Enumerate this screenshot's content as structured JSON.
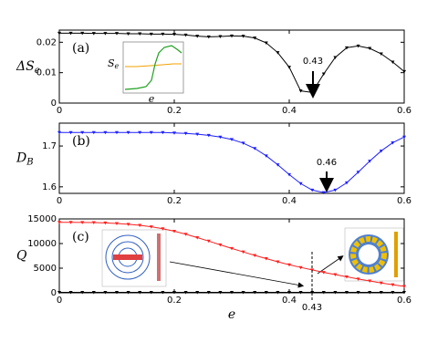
{
  "chart_data": [
    {
      "type": "line",
      "panel_label": "(a)",
      "ylabel": "ΔS",
      "ylabel_sub": "e",
      "annotation": "0.43",
      "inset_ylabel": "S",
      "inset_ylabel_sub": "e",
      "inset_xlabel": "e",
      "x": [
        0,
        0.02,
        0.04,
        0.06,
        0.08,
        0.1,
        0.12,
        0.14,
        0.16,
        0.18,
        0.2,
        0.22,
        0.24,
        0.26,
        0.28,
        0.3,
        0.32,
        0.34,
        0.36,
        0.38,
        0.4,
        0.42,
        0.44,
        0.46,
        0.48,
        0.5,
        0.52,
        0.54,
        0.56,
        0.58,
        0.6
      ],
      "series": [
        {
          "color": "#000000",
          "values": [
            0.023,
            0.023,
            0.023,
            0.0229,
            0.0229,
            0.0229,
            0.0228,
            0.0228,
            0.0227,
            0.0227,
            0.0226,
            0.0224,
            0.022,
            0.0218,
            0.0219,
            0.0221,
            0.022,
            0.0214,
            0.0198,
            0.0166,
            0.0118,
            0.004,
            0.0035,
            0.0096,
            0.015,
            0.0182,
            0.0188,
            0.018,
            0.0162,
            0.0135,
            0.0104
          ]
        }
      ],
      "xlim": [
        0,
        0.6
      ],
      "xticks": [
        0,
        0.2,
        0.4,
        0.6
      ],
      "ylim": [
        0,
        0.024
      ],
      "yticks": [
        0,
        0.01,
        0.02
      ]
    },
    {
      "type": "line",
      "panel_label": "(b)",
      "ylabel": "D",
      "ylabel_sub": "B",
      "annotation": "0.46",
      "x": [
        0,
        0.02,
        0.04,
        0.06,
        0.08,
        0.1,
        0.12,
        0.14,
        0.16,
        0.18,
        0.2,
        0.22,
        0.24,
        0.26,
        0.28,
        0.3,
        0.32,
        0.34,
        0.36,
        0.38,
        0.4,
        0.42,
        0.44,
        0.46,
        0.48,
        0.5,
        0.52,
        0.54,
        0.56,
        0.58,
        0.6
      ],
      "series": [
        {
          "color": "#1f1fff",
          "values": [
            1.733,
            1.733,
            1.733,
            1.733,
            1.733,
            1.733,
            1.733,
            1.733,
            1.733,
            1.733,
            1.732,
            1.731,
            1.729,
            1.726,
            1.722,
            1.716,
            1.707,
            1.694,
            1.676,
            1.654,
            1.63,
            1.608,
            1.592,
            1.586,
            1.592,
            1.61,
            1.636,
            1.663,
            1.688,
            1.708,
            1.722
          ]
        }
      ],
      "xlim": [
        0,
        0.6
      ],
      "xticks": [
        0,
        0.2,
        0.4,
        0.6
      ],
      "ylim": [
        1.584,
        1.756
      ],
      "yticks": [
        1.6,
        1.7
      ]
    },
    {
      "type": "line",
      "panel_label": "(c)",
      "ylabel": "Q",
      "xlabel": "e",
      "annotation": "0.43",
      "x": [
        0,
        0.02,
        0.04,
        0.06,
        0.08,
        0.1,
        0.12,
        0.14,
        0.16,
        0.18,
        0.2,
        0.22,
        0.24,
        0.26,
        0.28,
        0.3,
        0.32,
        0.34,
        0.36,
        0.38,
        0.4,
        0.42,
        0.44,
        0.46,
        0.48,
        0.5,
        0.52,
        0.54,
        0.56,
        0.58,
        0.6
      ],
      "series": [
        {
          "color": "#ff2020",
          "values": [
            14300,
            14300,
            14280,
            14250,
            14180,
            14080,
            13920,
            13700,
            13400,
            13000,
            12500,
            11900,
            11200,
            10500,
            9750,
            9000,
            8300,
            7600,
            6950,
            6300,
            5700,
            5150,
            4650,
            4150,
            3700,
            3250,
            2800,
            2400,
            2000,
            1650,
            1300
          ]
        },
        {
          "color": "#000000",
          "values": [
            100,
            100,
            100,
            100,
            100,
            100,
            100,
            100,
            100,
            100,
            100,
            100,
            100,
            100,
            100,
            100,
            100,
            100,
            100,
            100,
            100,
            100,
            100,
            100,
            100,
            100,
            100,
            100,
            100,
            100,
            100
          ]
        }
      ],
      "xlim": [
        0,
        0.6
      ],
      "xticks": [
        0,
        0.2,
        0.4,
        0.6
      ],
      "ylim": [
        0,
        15000
      ],
      "yticks": [
        0,
        5000,
        10000,
        15000
      ]
    }
  ]
}
